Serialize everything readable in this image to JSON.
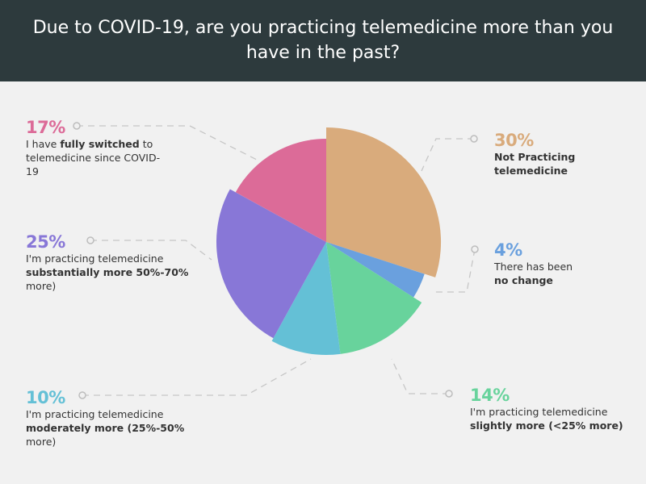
{
  "title": "Due to COVID-19, are you practicing telemedicine more than you have in the past?",
  "chart_data": {
    "type": "pie",
    "title": "Due to COVID-19, are you practicing telemedicine more than you have in the past?",
    "slices": [
      {
        "key": "not_practicing",
        "value": 30,
        "label": "30%",
        "color": "#d9ab7c",
        "text_pre": "",
        "text_bold": "Not Practicing telemedicine",
        "text_post": ""
      },
      {
        "key": "no_change",
        "value": 4,
        "label": "4%",
        "color": "#6aa0de",
        "text_pre": "There has been",
        "text_bold": "no change",
        "text_post": ""
      },
      {
        "key": "slightly_more",
        "value": 14,
        "label": "14%",
        "color": "#68d39c",
        "text_pre": "I'm practicing telemedicine",
        "text_bold": "slightly more (<25%  more)",
        "text_post": ""
      },
      {
        "key": "moderately_more",
        "value": 10,
        "label": "10%",
        "color": "#64c0d6",
        "text_pre": "I'm practicing telemedicine",
        "text_bold": "moderately more (25%-50%",
        "text_post": "more)"
      },
      {
        "key": "substantially_more",
        "value": 25,
        "label": "25%",
        "color": "#8877d7",
        "text_pre": "I'm practicing telemedicine",
        "text_bold": "substantially more 50%-70%",
        "text_post": "more)"
      },
      {
        "key": "fully_switched",
        "value": 17,
        "label": "17%",
        "color": "#dc6b98",
        "text_pre": "I have",
        "text_bold": "fully switched",
        "text_post": "to telemedicine since COVID-19"
      }
    ]
  }
}
